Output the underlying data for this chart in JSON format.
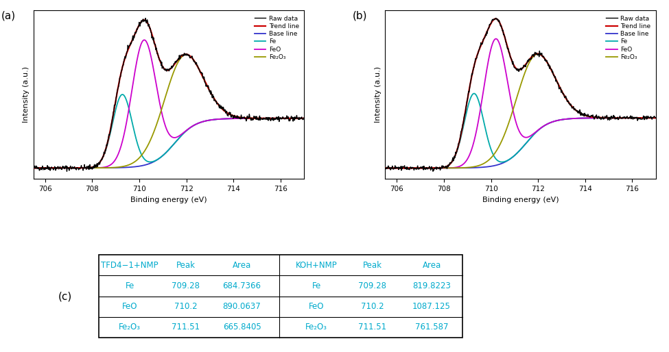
{
  "title_a": "(a)",
  "title_b": "(b)",
  "title_c": "(c)",
  "xlabel": "Binding energy (eV)",
  "ylabel": "Intensity (a.u.)",
  "xlim": [
    705.5,
    717.0
  ],
  "xticks": [
    706,
    708,
    710,
    712,
    714,
    716
  ],
  "colors": {
    "raw": "#000000",
    "trend": "#cc0000",
    "baseline": "#3333cc",
    "Fe": "#00aaaa",
    "FeO": "#cc00cc",
    "Fe2O3": "#999900"
  },
  "legend_labels": [
    "Raw data",
    "Trend line",
    "Base line",
    "Fe",
    "FeO",
    "Fe₂O₃"
  ],
  "table_header_color": "#00aacc",
  "table_data_color": "#00aacc",
  "table_header": [
    "TFD4−1+NMP",
    "Peak",
    "Area",
    "KOH+NMP",
    "Peak",
    "Area"
  ],
  "table_rows": [
    [
      "Fe",
      "709.28",
      "684.7366",
      "Fe",
      "709.28",
      "819.8223"
    ],
    [
      "FeO",
      "710.2",
      "890.0637",
      "FeO",
      "710.2",
      "1087.125"
    ],
    [
      "Fe₂O₃",
      "711.51",
      "665.8405",
      "Fe₂O₃",
      "711.51",
      "761.587"
    ]
  ],
  "background_color": "#ffffff"
}
